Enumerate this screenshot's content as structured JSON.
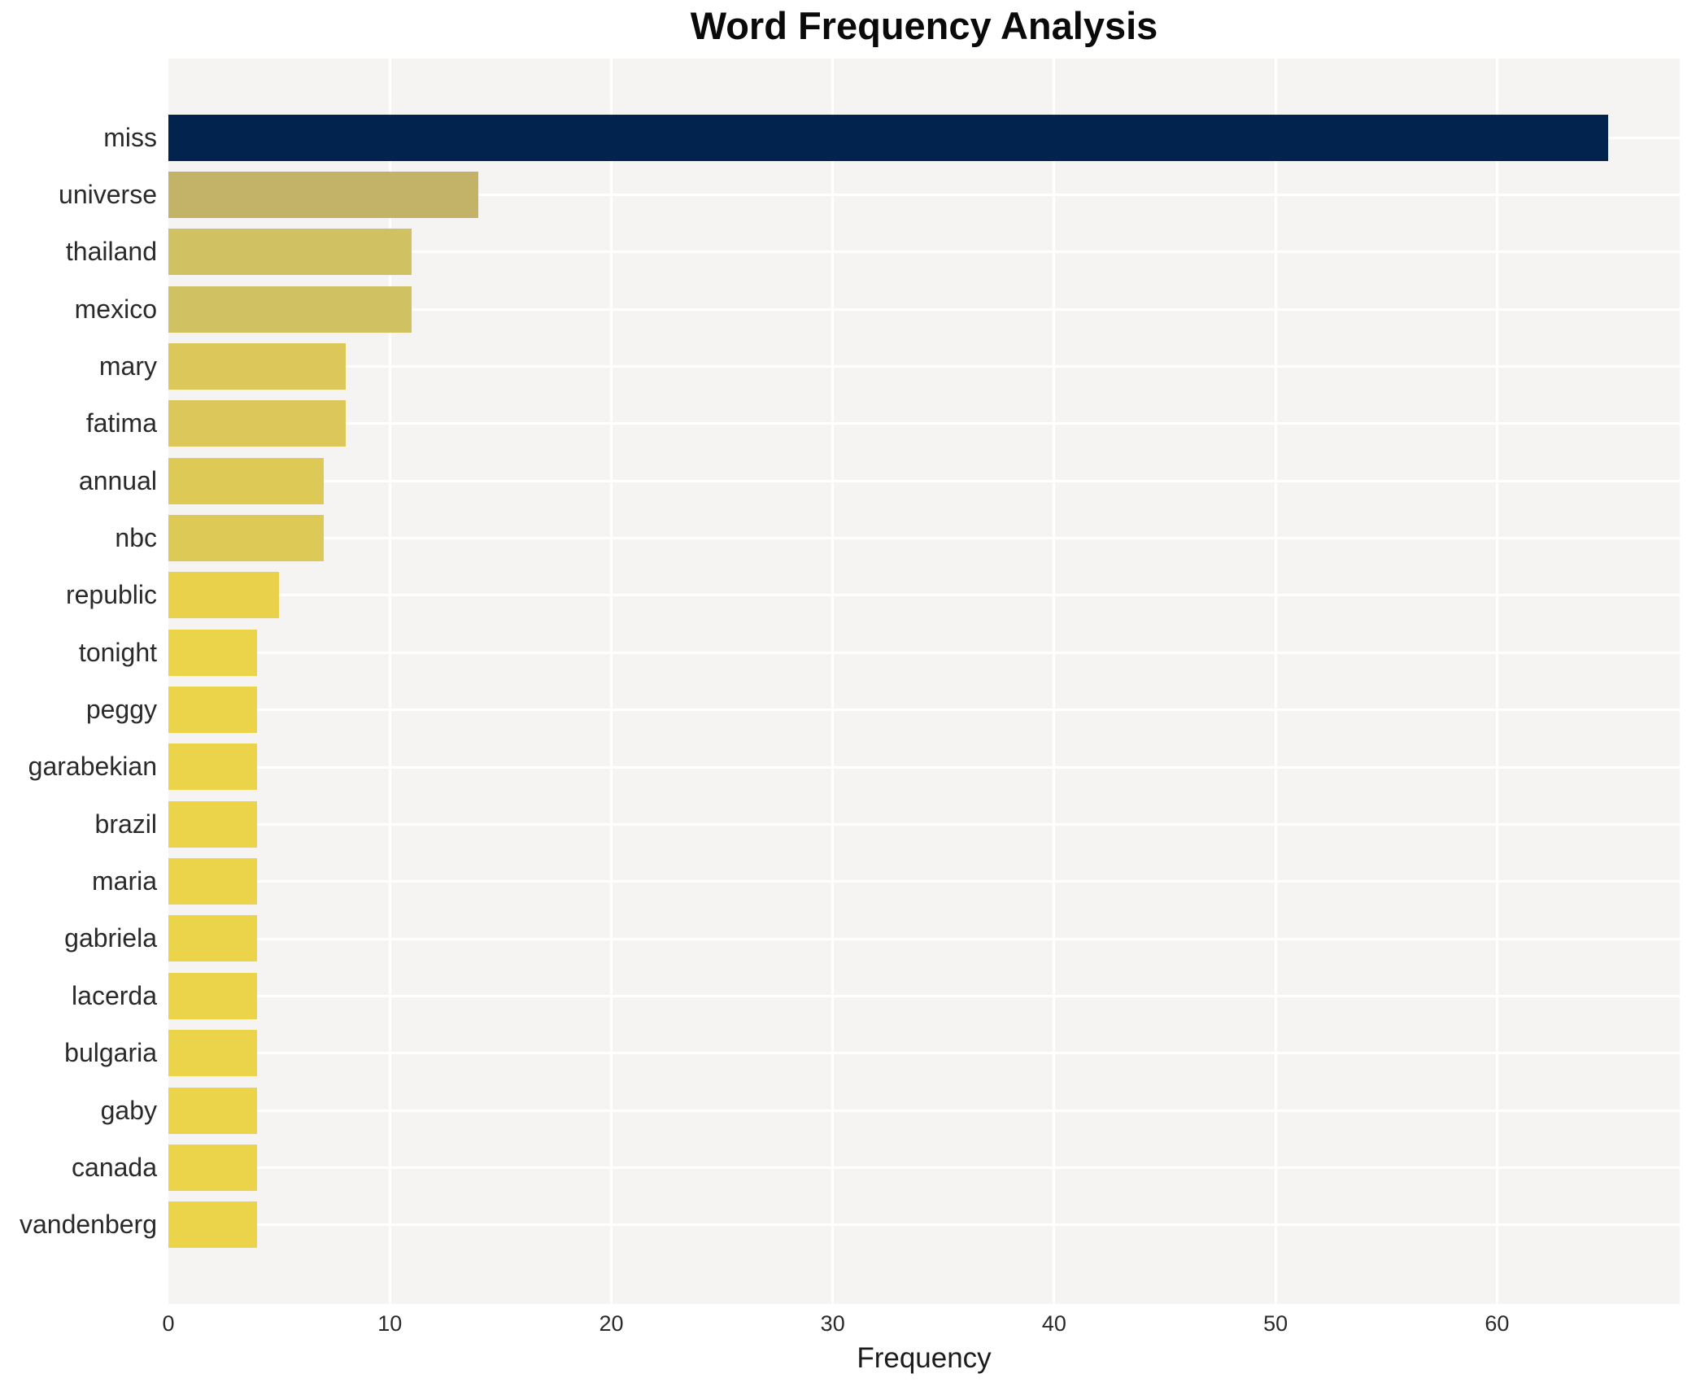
{
  "chart_data": {
    "type": "bar",
    "orientation": "horizontal",
    "title": "Word Frequency Analysis",
    "xlabel": "Frequency",
    "ylabel": "",
    "xlim": [
      0,
      68.25
    ],
    "x_ticks": [
      0,
      10,
      20,
      30,
      40,
      50,
      60
    ],
    "grid": "white gridlines on light-gray panel, drawn behind bars (vertical at every 10, horizontal at each bar center)",
    "legend": "none",
    "categories": [
      "miss",
      "universe",
      "thailand",
      "mexico",
      "mary",
      "fatima",
      "annual",
      "nbc",
      "republic",
      "tonight",
      "peggy",
      "garabekian",
      "brazil",
      "maria",
      "gabriela",
      "lacerda",
      "bulgaria",
      "gaby",
      "canada",
      "vandenberg"
    ],
    "values": [
      65,
      14,
      11,
      11,
      8,
      8,
      7,
      7,
      5,
      4,
      4,
      4,
      4,
      4,
      4,
      4,
      4,
      4,
      4,
      4
    ],
    "bar_colors": [
      "#01234e",
      "#c3b368",
      "#d0c163",
      "#d0c163",
      "#dcc85a",
      "#dcc85a",
      "#ddc956",
      "#ddc956",
      "#e9d14c",
      "#ecd44a",
      "#ecd44a",
      "#ecd44a",
      "#ecd44a",
      "#ecd44a",
      "#ecd44a",
      "#ecd44a",
      "#ecd44a",
      "#ecd44a",
      "#ecd44a",
      "#ecd44a"
    ]
  },
  "style_colors": {
    "figure_background": "#ffffff",
    "panel_background": "#f5f4f2",
    "gridline": "#ffffff",
    "tick_label": "#2a2a2a",
    "title": "#0a0a0a"
  }
}
